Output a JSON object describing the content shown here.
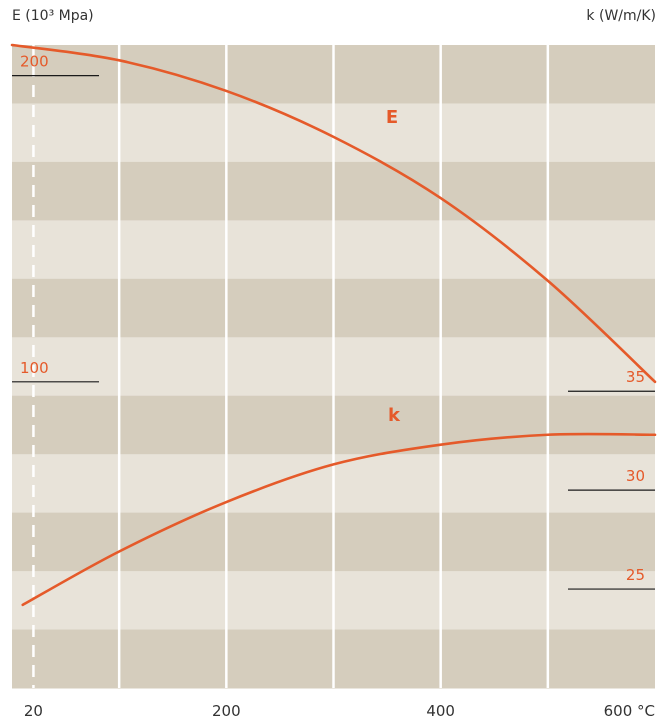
{
  "chart_data": {
    "type": "line",
    "title": "",
    "y_left_label": "E (10³ Mpa)",
    "y_right_label": "k (W/m/K)",
    "x_ticks": [
      {
        "value": 20,
        "label": "20"
      },
      {
        "value": 200,
        "label": "200"
      },
      {
        "value": 400,
        "label": "400"
      },
      {
        "value": 600,
        "label": "600 °C"
      }
    ],
    "x_gridlines": [
      100,
      200,
      300,
      400,
      500
    ],
    "xlim": [
      0,
      600
    ],
    "y_left_ticks": [
      {
        "value": 100,
        "label": "100"
      },
      {
        "value": 200,
        "label": "200"
      }
    ],
    "y_left_lim": [
      0,
      210
    ],
    "y_right_ticks": [
      {
        "value": 25,
        "label": "25"
      },
      {
        "value": 30,
        "label": "30"
      },
      {
        "value": 35,
        "label": "35"
      }
    ],
    "y_right_lim": [
      20,
      52.5
    ],
    "reference_line_x": 20,
    "series": [
      {
        "name": "E",
        "axis": "left",
        "color": "#e55a2a",
        "x": [
          0,
          100,
          200,
          300,
          400,
          500,
          600
        ],
        "y": [
          210,
          205,
          195,
          180,
          160,
          133,
          100
        ]
      },
      {
        "name": "k",
        "axis": "right",
        "color": "#e55a2a",
        "x": [
          10,
          100,
          200,
          300,
          400,
          500,
          600
        ],
        "y": [
          24.2,
          26.9,
          29.4,
          31.3,
          32.3,
          32.8,
          32.8
        ]
      }
    ],
    "background": {
      "dark_band": "#d5cdbd",
      "light_band": "#e8e3d9",
      "gridline": "#ffffff",
      "axis_text": "#333333",
      "tick_marker": "#1a1a1a"
    }
  }
}
